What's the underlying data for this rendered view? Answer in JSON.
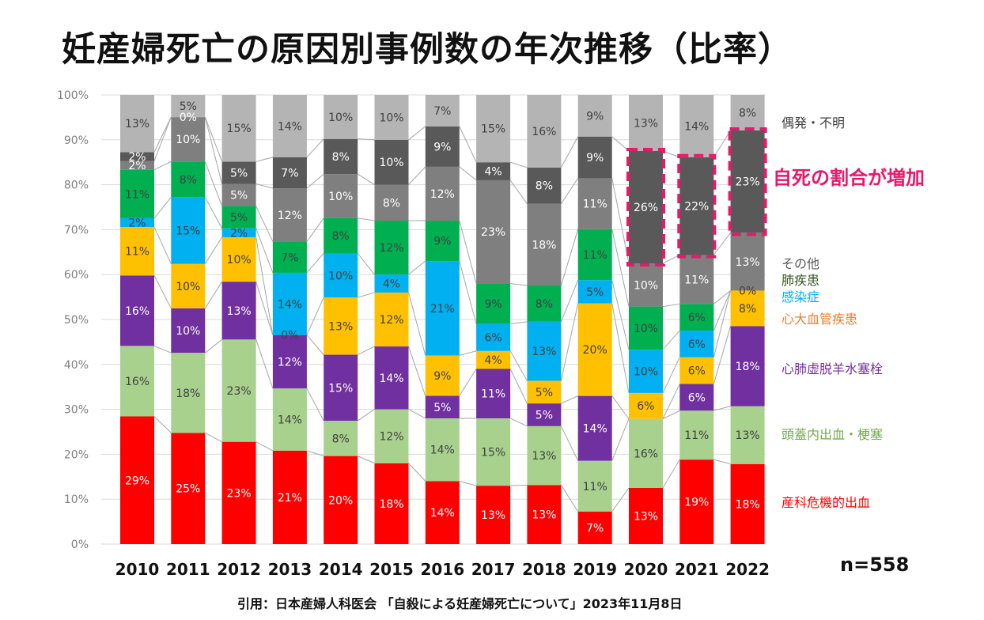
{
  "title": "妊産婦死亡の原因別事例数の年次推移（比率）",
  "annotation": "自死の割合が増加",
  "sample_size": "n=558",
  "citation": "引用：日本産婦人科医会 「自殺による妊産婦死亡について」2023年11月8日",
  "chart_data": {
    "type": "bar",
    "stacked": true,
    "title": "妊産婦死亡の原因別事例数の年次推移（比率）",
    "xlabel": "",
    "ylabel": "",
    "ylim": [
      0,
      100
    ],
    "y_ticks": [
      "0%",
      "10%",
      "20%",
      "30%",
      "40%",
      "50%",
      "60%",
      "70%",
      "80%",
      "90%",
      "100%"
    ],
    "grid": true,
    "legend_position": "right",
    "categories": [
      "2010",
      "2011",
      "2012",
      "2013",
      "2014",
      "2015",
      "2016",
      "2017",
      "2018",
      "2019",
      "2020",
      "2021",
      "2022"
    ],
    "series": [
      {
        "name": "産科危機的出血",
        "color": "#ff0000",
        "label_color": "#ffffff",
        "legend_color": "#ff0000",
        "values": [
          29,
          25,
          23,
          21,
          20,
          18,
          14,
          13,
          13,
          7,
          13,
          19,
          18
        ]
      },
      {
        "name": "頭蓋内出血・梗塞",
        "color": "#a9d18e",
        "label_color": "#404040",
        "legend_color": "#70ad47",
        "values": [
          16,
          18,
          23,
          14,
          8,
          12,
          14,
          15,
          13,
          11,
          16,
          11,
          13
        ]
      },
      {
        "name": "心肺虚脱羊水塞栓",
        "color": "#7030a0",
        "label_color": "#ffffff",
        "legend_color": "#7030a0",
        "values": [
          16,
          10,
          13,
          12,
          15,
          14,
          5,
          11,
          5,
          14,
          0,
          6,
          18
        ]
      },
      {
        "name": "心大血管疾患",
        "color": "#ffc000",
        "label_color": "#404040",
        "legend_color": "#ed7d31",
        "values": [
          11,
          10,
          10,
          0,
          13,
          12,
          9,
          4,
          5,
          20,
          6,
          6,
          8
        ]
      },
      {
        "name": "感染症",
        "color": "#00b0f0",
        "label_color": "#404040",
        "legend_color": "#00b0f0",
        "values": [
          2,
          15,
          2,
          14,
          10,
          4,
          21,
          6,
          13,
          5,
          10,
          6,
          0
        ]
      },
      {
        "name": "肺疾患",
        "color": "#00b050",
        "label_color": "#404040",
        "legend_color": "#375623",
        "values": [
          11,
          8,
          5,
          7,
          8,
          12,
          9,
          9,
          8,
          11,
          10,
          6,
          0
        ]
      },
      {
        "name": "その他",
        "color": "#7f7f7f",
        "label_color": "#ffffff",
        "legend_color": "#595959",
        "values": [
          2,
          10,
          5,
          12,
          10,
          8,
          12,
          23,
          18,
          11,
          10,
          11,
          13
        ]
      },
      {
        "name": "自死",
        "color": "#595959",
        "label_color": "#ffffff",
        "legend_color": "#595959",
        "values": [
          2,
          0,
          5,
          7,
          8,
          10,
          9,
          4,
          8,
          9,
          26,
          22,
          23
        ]
      },
      {
        "name": "偶発・不明",
        "color": "#b4b4b4",
        "label_color": "#404040",
        "legend_color": "#404040",
        "values": [
          13,
          5,
          15,
          14,
          10,
          10,
          7,
          15,
          16,
          9,
          13,
          14,
          8
        ]
      }
    ],
    "labels": [
      [
        "29%",
        "25%",
        "23%",
        "21%",
        "20%",
        "18%",
        "14%",
        "13%",
        "13%",
        "7%",
        "13%",
        "19%",
        "18%"
      ],
      [
        "16%",
        "18%",
        "23%",
        "14%",
        "8%",
        "12%",
        "14%",
        "15%",
        "13%",
        "11%",
        "16%",
        "11%",
        "13%"
      ],
      [
        "16%",
        "10%",
        "13%",
        "12%",
        "15%",
        "14%",
        "5%",
        "11%",
        "5%",
        "14%",
        "",
        "6%",
        "18%"
      ],
      [
        "11%",
        "10%",
        "10%",
        "0%",
        "13%",
        "12%",
        "9%",
        "4%",
        "5%",
        "20%",
        "6%",
        "6%",
        "8%"
      ],
      [
        "2%",
        "15%",
        "2%",
        "14%",
        "10%",
        "4%",
        "21%",
        "6%",
        "13%",
        "5%",
        "10%",
        "6%",
        ""
      ],
      [
        "11%",
        "8%",
        "5%",
        "7%",
        "8%",
        "12%",
        "9%",
        "9%",
        "8%",
        "11%",
        "10%",
        "6%",
        "0%"
      ],
      [
        "2%",
        "10%",
        "5%",
        "12%",
        "10%",
        "8%",
        "12%",
        "23%",
        "18%",
        "11%",
        "10%",
        "11%",
        "13%"
      ],
      [
        "2%",
        "0%",
        "5%",
        "7%",
        "8%",
        "10%",
        "9%",
        "4%",
        "8%",
        "9%",
        "26%",
        "22%",
        "23%"
      ],
      [
        "13%",
        "5%",
        "15%",
        "14%",
        "10%",
        "10%",
        "7%",
        "15%",
        "16%",
        "9%",
        "13%",
        "14%",
        "8%"
      ]
    ],
    "legend_labels": [
      "偶発・不明",
      "その他",
      "肺疾患",
      "感染症",
      "心大血管疾患",
      "心肺虚脱羊水塞栓",
      "頭蓋内出血・梗塞",
      "産科危機的出血"
    ],
    "highlight": {
      "series": "自死",
      "years": [
        "2020",
        "2021",
        "2022"
      ],
      "color": "#e8186a",
      "style": "dashed"
    }
  }
}
